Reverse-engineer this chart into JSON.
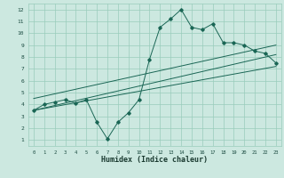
{
  "title": "",
  "xlabel": "Humidex (Indice chaleur)",
  "ylabel": "",
  "bg_color": "#cce8e0",
  "grid_color": "#99ccbb",
  "line_color": "#1a6655",
  "xlim": [
    -0.5,
    23.5
  ],
  "ylim": [
    0.5,
    12.5
  ],
  "xticks": [
    0,
    1,
    2,
    3,
    4,
    5,
    6,
    7,
    8,
    9,
    10,
    11,
    12,
    13,
    14,
    15,
    16,
    17,
    18,
    19,
    20,
    21,
    22,
    23
  ],
  "yticks": [
    1,
    2,
    3,
    4,
    5,
    6,
    7,
    8,
    9,
    10,
    11,
    12
  ],
  "main_x": [
    0,
    1,
    2,
    3,
    4,
    5,
    6,
    7,
    8,
    9,
    10,
    11,
    12,
    13,
    14,
    15,
    16,
    17,
    18,
    19,
    20,
    21,
    22,
    23
  ],
  "main_y": [
    3.5,
    4.0,
    4.2,
    4.4,
    4.1,
    4.4,
    2.5,
    1.1,
    2.5,
    3.3,
    4.4,
    7.8,
    10.5,
    11.2,
    12.0,
    10.5,
    10.3,
    10.8,
    9.2,
    9.2,
    9.0,
    8.5,
    8.3,
    7.5
  ],
  "line1_x": [
    0,
    23
  ],
  "line1_y": [
    3.5,
    8.2
  ],
  "line2_x": [
    0,
    23
  ],
  "line2_y": [
    4.5,
    9.0
  ],
  "line3_x": [
    0,
    23
  ],
  "line3_y": [
    3.5,
    7.2
  ]
}
